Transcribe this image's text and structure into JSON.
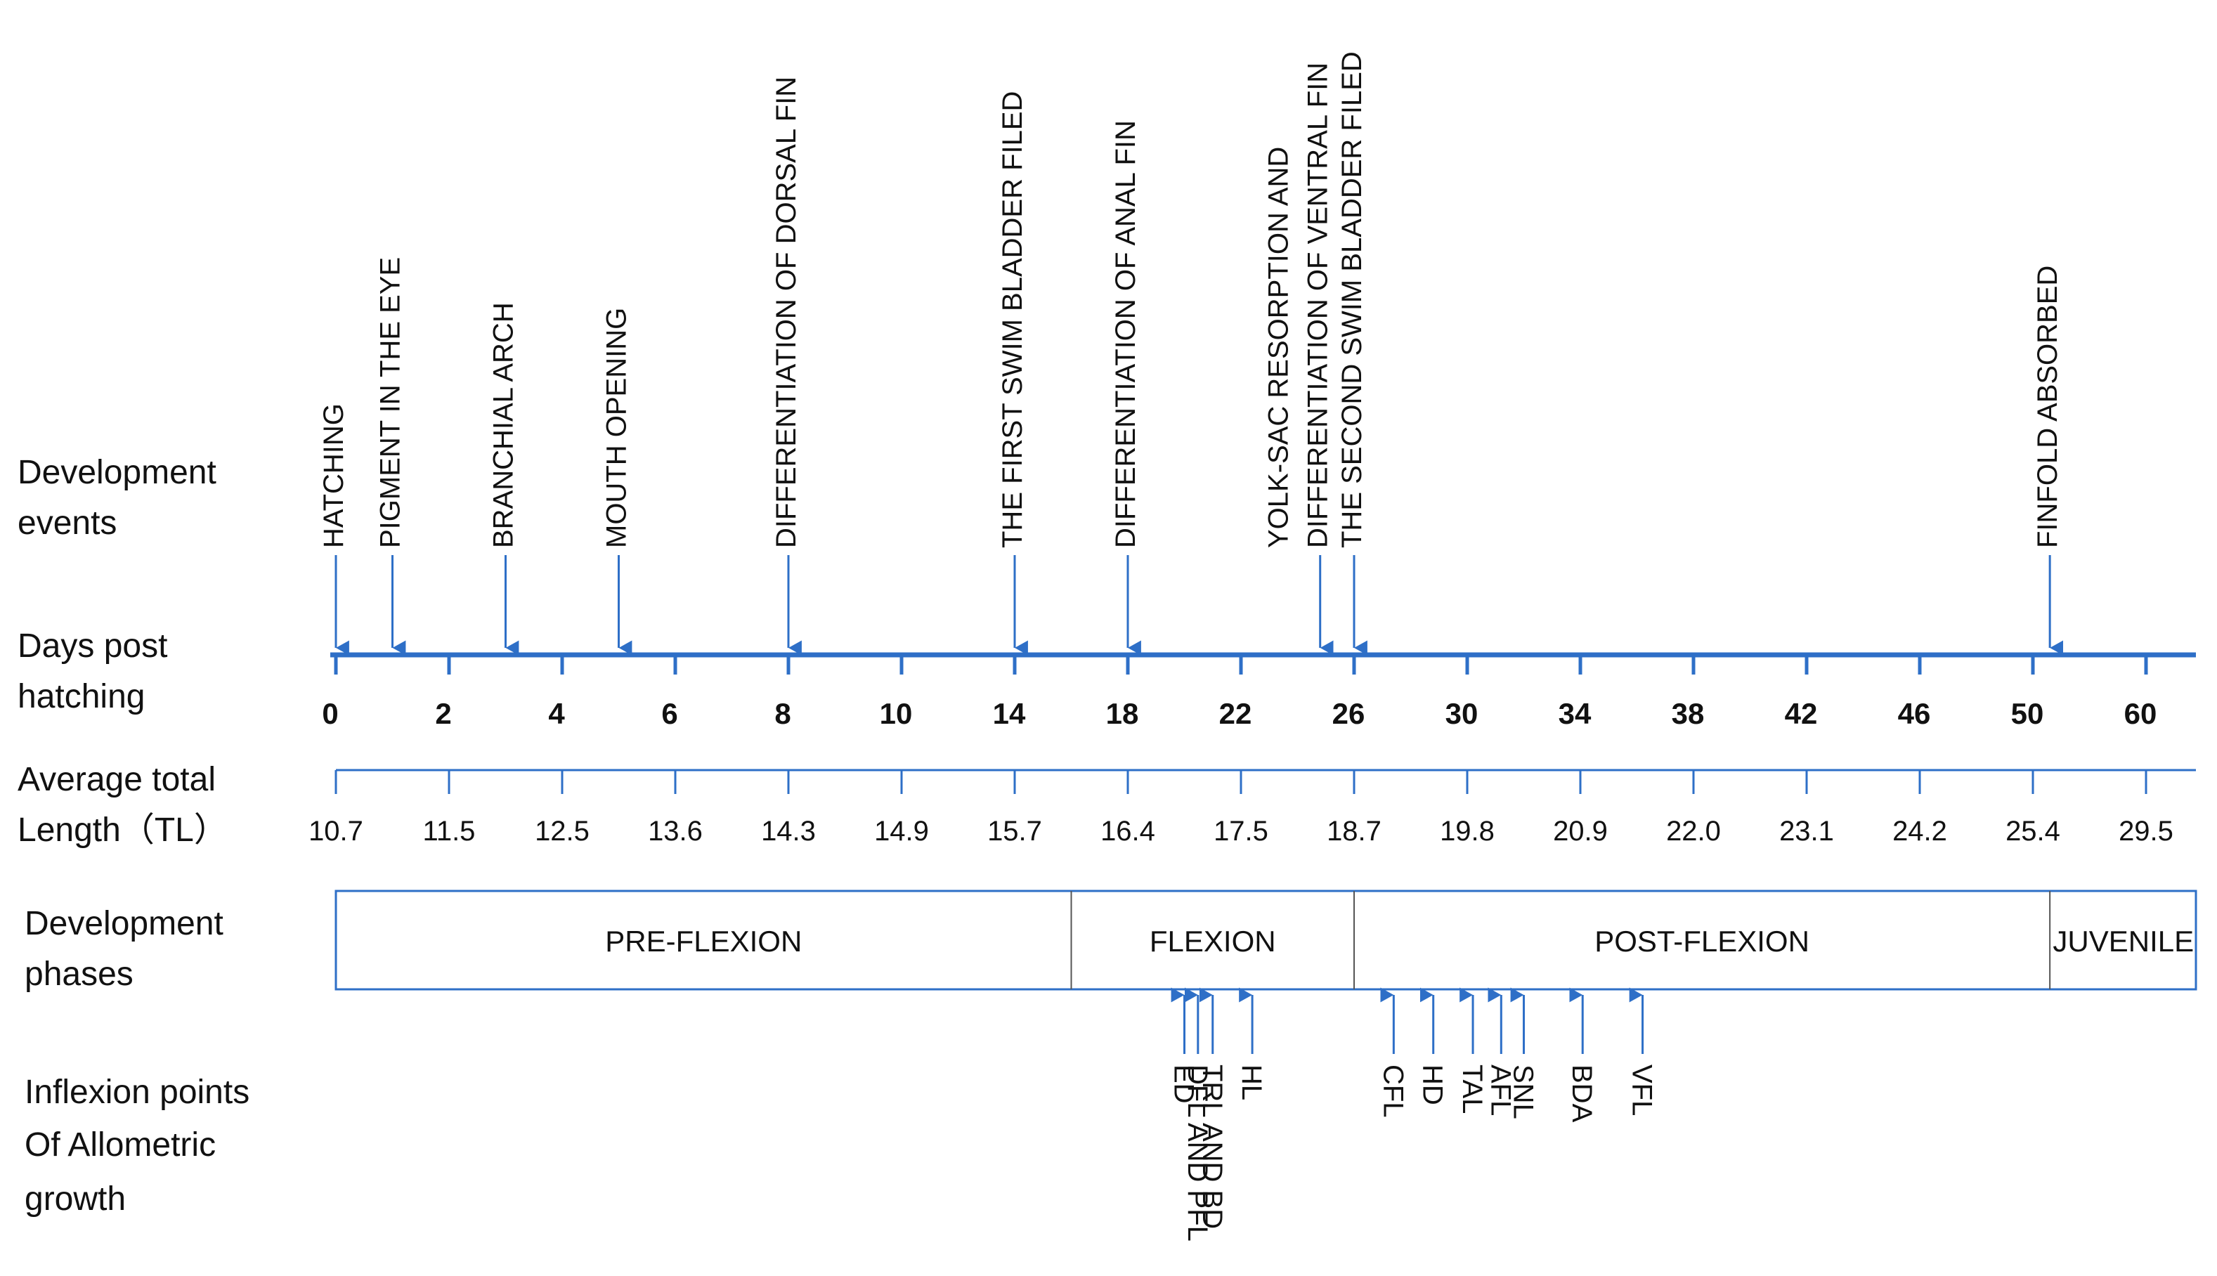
{
  "colors": {
    "line": "#2e6fc7",
    "text": "#111111",
    "divider": "#555555"
  },
  "row_labels": {
    "events": [
      "Development",
      "events"
    ],
    "days": [
      "Days post",
      "hatching"
    ],
    "length": [
      "Average total",
      "Length（TL）"
    ],
    "phases": [
      "Development",
      "phases"
    ],
    "inflexion": [
      "Inflexion points",
      "Of Allometric",
      "growth"
    ]
  },
  "days_ticks": [
    "0",
    "2",
    "4",
    "6",
    "8",
    "10",
    "14",
    "18",
    "22",
    "26",
    "30",
    "34",
    "38",
    "42",
    "46",
    "50",
    "60"
  ],
  "tl_ticks": [
    "10.7",
    "11.5",
    "12.5",
    "13.6",
    "14.3",
    "14.9",
    "15.7",
    "16.4",
    "17.5",
    "18.7",
    "19.8",
    "20.9",
    "22.0",
    "23.1",
    "24.2",
    "25.4",
    "29.5"
  ],
  "events": [
    {
      "pos": 0,
      "lines": [
        "HATCHING"
      ]
    },
    {
      "pos": 0.5,
      "lines": [
        "PIGMENT IN THE EYE"
      ]
    },
    {
      "pos": 1.5,
      "lines": [
        "BRANCHIAL ARCH"
      ]
    },
    {
      "pos": 2.5,
      "lines": [
        "MOUTH OPENING"
      ]
    },
    {
      "pos": 4,
      "lines": [
        "DIFFERENTIATION OF DORSAL FIN"
      ]
    },
    {
      "pos": 6,
      "lines": [
        "THE FIRST SWIM BLADDER FILED"
      ]
    },
    {
      "pos": 7,
      "lines": [
        "DIFFERENTIATION OF ANAL FIN"
      ]
    },
    {
      "pos": 8.7,
      "lines": [
        "YOLK-SAC RESORPTION AND",
        "DIFFERENTIATION OF VENTRAL FIN"
      ]
    },
    {
      "pos": 9,
      "lines": [
        "THE SECOND SWIM BLADDER FILED"
      ]
    },
    {
      "pos": 15.15,
      "lines": [
        "FINFOLD ABSORBED"
      ]
    }
  ],
  "phases": [
    {
      "label": "PRE-FLEXION",
      "start": 0,
      "end": 6.5
    },
    {
      "label": "FLEXION",
      "start": 6.5,
      "end": 9
    },
    {
      "label": "POST-FLEXION",
      "start": 9,
      "end": 15.15
    },
    {
      "label": "JUVENILE",
      "start": 15.15,
      "end": 16.45
    }
  ],
  "inflexion_points": [
    {
      "pos": 7.5,
      "lines": [
        "ED"
      ]
    },
    {
      "pos": 7.62,
      "lines": [
        "DFL AND PFL"
      ]
    },
    {
      "pos": 7.75,
      "lines": [
        "TRL AND BD"
      ]
    },
    {
      "pos": 8.1,
      "lines": [
        "HL"
      ]
    },
    {
      "pos": 9.35,
      "lines": [
        "CFL"
      ]
    },
    {
      "pos": 9.7,
      "lines": [
        "HD"
      ]
    },
    {
      "pos": 10.05,
      "lines": [
        "TAL"
      ]
    },
    {
      "pos": 10.3,
      "lines": [
        "AFL"
      ]
    },
    {
      "pos": 10.5,
      "lines": [
        "SNL"
      ]
    },
    {
      "pos": 11.02,
      "lines": [
        "BDA"
      ]
    },
    {
      "pos": 11.55,
      "lines": [
        "VFL"
      ]
    }
  ]
}
